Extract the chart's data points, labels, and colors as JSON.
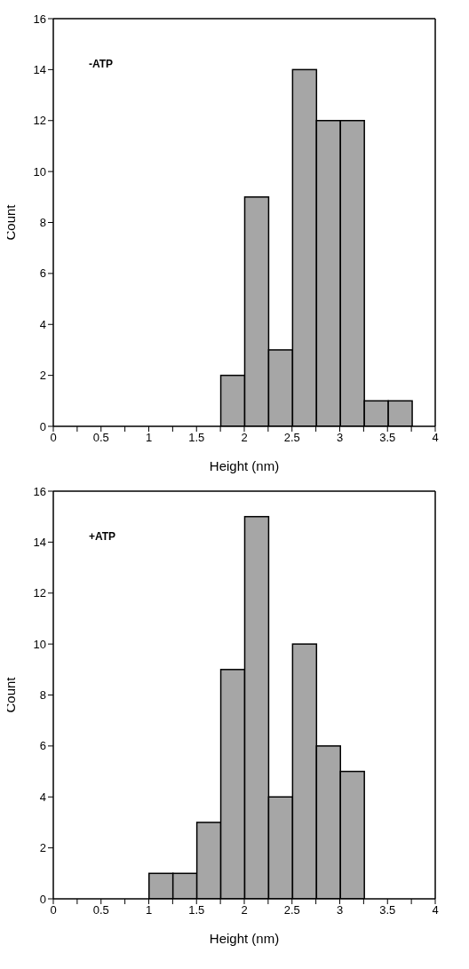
{
  "chart_data": [
    {
      "type": "histogram",
      "annotations": [
        "-ATP"
      ],
      "xlabel": "Height (nm)",
      "ylabel": "Count",
      "color": "#a6a6a6",
      "bins": [
        1.75,
        2,
        2.25,
        2.5,
        2.75,
        3,
        3.25,
        3.5,
        3.75
      ],
      "values": [
        2,
        9,
        3,
        14,
        12,
        12,
        1,
        1
      ],
      "xlim": [
        0,
        4
      ],
      "xticks": [
        0,
        {
          "value": 0.25,
          "label": null
        },
        0.5,
        {
          "value": 0.75,
          "label": null
        },
        1,
        {
          "value": 1.25,
          "label": null
        },
        1.5,
        {
          "value": 1.75,
          "label": null
        },
        2,
        {
          "value": 2.25,
          "label": null
        },
        2.5,
        {
          "value": 2.75,
          "label": null
        },
        3,
        {
          "value": 3.25,
          "label": null
        },
        3.5,
        {
          "value": 3.75,
          "label": null
        },
        4
      ],
      "ylim": [
        0,
        16
      ],
      "yticks": [
        0,
        2,
        4,
        6,
        8,
        10,
        12,
        14,
        16
      ]
    },
    {
      "type": "histogram",
      "annotations": [
        "+ATP"
      ],
      "xlabel": "Height (nm)",
      "ylabel": "Count",
      "color": "#a6a6a6",
      "bins": [
        1,
        1.25,
        1.5,
        1.75,
        2,
        2.25,
        2.5,
        2.75,
        3,
        3.25
      ],
      "values": [
        1,
        1,
        3,
        9,
        15,
        4,
        10,
        6,
        5
      ],
      "xlim": [
        0,
        4
      ],
      "xticks": [
        0,
        {
          "value": 0.25,
          "label": null
        },
        0.5,
        {
          "value": 0.75,
          "label": null
        },
        1,
        {
          "value": 1.25,
          "label": null
        },
        1.5,
        {
          "value": 1.75,
          "label": null
        },
        2,
        {
          "value": 2.25,
          "label": null
        },
        2.5,
        {
          "value": 2.75,
          "label": null
        },
        3,
        {
          "value": 3.25,
          "label": null
        },
        3.5,
        {
          "value": 3.75,
          "label": null
        },
        4
      ],
      "ylim": [
        0,
        16
      ],
      "yticks": [
        0,
        2,
        4,
        6,
        8,
        10,
        12,
        14,
        16
      ]
    }
  ]
}
